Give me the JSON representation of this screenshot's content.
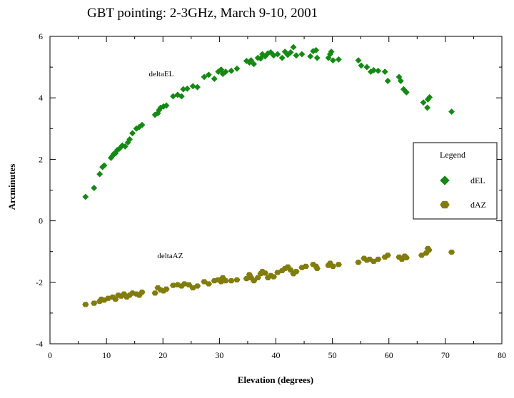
{
  "chart_data": {
    "type": "scatter",
    "title": "GBT pointing:  2-3GHz, March 9-10, 2001",
    "xlabel": "Elevation (degrees)",
    "ylabel": "Arcminutes",
    "xlim": [
      0,
      80
    ],
    "ylim": [
      -4,
      6
    ],
    "x_ticks": [
      "0",
      "10",
      "20",
      "30",
      "40",
      "50",
      "60",
      "70",
      "80"
    ],
    "y_ticks": [
      "-4",
      "-2",
      "0",
      "2",
      "4",
      "6"
    ],
    "grid": false,
    "legend": {
      "title": "Legend",
      "placement": "right",
      "entries": [
        "dEL",
        "dAZ"
      ]
    },
    "annotations": [
      {
        "text": "deltaEL",
        "x": 17.5,
        "y": 4.7
      },
      {
        "text": "deltaAZ",
        "x": 19,
        "y": -1.22
      }
    ],
    "series": [
      {
        "name": "dEL",
        "marker": "diamond",
        "color": "#138a13",
        "points": [
          [
            6.3,
            0.78
          ],
          [
            7.8,
            1.07
          ],
          [
            8.8,
            1.52
          ],
          [
            9.3,
            1.75
          ],
          [
            9.6,
            1.8
          ],
          [
            10.8,
            2.05
          ],
          [
            11.1,
            2.12
          ],
          [
            11.3,
            2.18
          ],
          [
            11.6,
            2.2
          ],
          [
            11.9,
            2.3
          ],
          [
            12.3,
            2.35
          ],
          [
            12.8,
            2.45
          ],
          [
            13.3,
            2.42
          ],
          [
            13.8,
            2.55
          ],
          [
            14.1,
            2.65
          ],
          [
            14.6,
            2.85
          ],
          [
            15.3,
            3.0
          ],
          [
            15.8,
            3.05
          ],
          [
            16.3,
            3.12
          ],
          [
            18.6,
            3.45
          ],
          [
            19.1,
            3.5
          ],
          [
            19.3,
            3.6
          ],
          [
            19.6,
            3.68
          ],
          [
            20.1,
            3.72
          ],
          [
            20.6,
            3.75
          ],
          [
            21.8,
            4.05
          ],
          [
            22.6,
            4.1
          ],
          [
            23.3,
            4.05
          ],
          [
            23.6,
            4.28
          ],
          [
            24.3,
            4.3
          ],
          [
            25.3,
            4.38
          ],
          [
            26.1,
            4.35
          ],
          [
            27.3,
            4.68
          ],
          [
            28.1,
            4.75
          ],
          [
            29.1,
            4.62
          ],
          [
            29.8,
            4.85
          ],
          [
            30.3,
            4.92
          ],
          [
            30.6,
            4.78
          ],
          [
            31.1,
            4.85
          ],
          [
            32.1,
            4.88
          ],
          [
            33.1,
            4.95
          ],
          [
            34.8,
            5.2
          ],
          [
            35.3,
            5.15
          ],
          [
            35.6,
            5.22
          ],
          [
            36.1,
            5.1
          ],
          [
            36.8,
            5.3
          ],
          [
            37.3,
            5.28
          ],
          [
            37.6,
            5.42
          ],
          [
            38.1,
            5.35
          ],
          [
            38.6,
            5.45
          ],
          [
            39.1,
            5.48
          ],
          [
            39.6,
            5.38
          ],
          [
            40.3,
            5.42
          ],
          [
            41.1,
            5.3
          ],
          [
            41.6,
            5.5
          ],
          [
            42.1,
            5.4
          ],
          [
            42.6,
            5.48
          ],
          [
            43.1,
            5.65
          ],
          [
            43.6,
            5.38
          ],
          [
            44.6,
            5.42
          ],
          [
            46.1,
            5.35
          ],
          [
            46.6,
            5.52
          ],
          [
            47.1,
            5.55
          ],
          [
            47.3,
            5.3
          ],
          [
            49.3,
            5.3
          ],
          [
            49.6,
            5.42
          ],
          [
            49.8,
            5.5
          ],
          [
            50.1,
            5.22
          ],
          [
            51.1,
            5.25
          ],
          [
            54.6,
            5.22
          ],
          [
            55.1,
            5.05
          ],
          [
            56.1,
            5.0
          ],
          [
            56.8,
            4.85
          ],
          [
            57.3,
            4.9
          ],
          [
            58.1,
            4.88
          ],
          [
            59.3,
            4.85
          ],
          [
            59.8,
            4.55
          ],
          [
            61.8,
            4.68
          ],
          [
            62.1,
            4.55
          ],
          [
            62.6,
            4.28
          ],
          [
            63.1,
            4.18
          ],
          [
            66.1,
            3.85
          ],
          [
            66.8,
            3.68
          ],
          [
            66.9,
            3.95
          ],
          [
            67.2,
            4.02
          ],
          [
            71.1,
            3.55
          ]
        ]
      },
      {
        "name": "dAZ",
        "marker": "hexagon",
        "color": "#827c0c",
        "points": [
          [
            6.3,
            -2.72
          ],
          [
            7.8,
            -2.68
          ],
          [
            8.8,
            -2.62
          ],
          [
            9.1,
            -2.55
          ],
          [
            9.6,
            -2.58
          ],
          [
            10.3,
            -2.52
          ],
          [
            11.1,
            -2.48
          ],
          [
            11.6,
            -2.55
          ],
          [
            12.1,
            -2.42
          ],
          [
            12.6,
            -2.45
          ],
          [
            13.1,
            -2.38
          ],
          [
            13.6,
            -2.48
          ],
          [
            14.1,
            -2.42
          ],
          [
            14.6,
            -2.35
          ],
          [
            15.3,
            -2.38
          ],
          [
            15.8,
            -2.42
          ],
          [
            16.3,
            -2.32
          ],
          [
            18.6,
            -2.35
          ],
          [
            19.1,
            -2.18
          ],
          [
            19.6,
            -2.25
          ],
          [
            20.1,
            -2.28
          ],
          [
            20.6,
            -2.22
          ],
          [
            21.8,
            -2.1
          ],
          [
            22.6,
            -2.08
          ],
          [
            23.3,
            -2.12
          ],
          [
            23.8,
            -2.05
          ],
          [
            24.6,
            -2.08
          ],
          [
            25.3,
            -2.18
          ],
          [
            26.1,
            -2.12
          ],
          [
            27.3,
            -1.98
          ],
          [
            28.1,
            -2.05
          ],
          [
            29.1,
            -1.95
          ],
          [
            29.8,
            -1.92
          ],
          [
            30.3,
            -1.98
          ],
          [
            30.6,
            -1.85
          ],
          [
            31.1,
            -1.95
          ],
          [
            32.1,
            -1.95
          ],
          [
            33.1,
            -1.92
          ],
          [
            34.8,
            -1.88
          ],
          [
            35.3,
            -1.75
          ],
          [
            35.6,
            -1.85
          ],
          [
            36.1,
            -1.95
          ],
          [
            36.8,
            -1.85
          ],
          [
            37.3,
            -1.72
          ],
          [
            37.6,
            -1.65
          ],
          [
            38.1,
            -1.7
          ],
          [
            38.6,
            -1.85
          ],
          [
            39.1,
            -1.78
          ],
          [
            39.6,
            -1.82
          ],
          [
            40.3,
            -1.68
          ],
          [
            41.1,
            -1.62
          ],
          [
            41.6,
            -1.55
          ],
          [
            42.1,
            -1.5
          ],
          [
            42.6,
            -1.6
          ],
          [
            43.1,
            -1.72
          ],
          [
            43.6,
            -1.65
          ],
          [
            44.6,
            -1.52
          ],
          [
            45.3,
            -1.48
          ],
          [
            46.6,
            -1.42
          ],
          [
            47.1,
            -1.48
          ],
          [
            47.3,
            -1.55
          ],
          [
            49.3,
            -1.45
          ],
          [
            49.6,
            -1.38
          ],
          [
            50.1,
            -1.48
          ],
          [
            51.1,
            -1.42
          ],
          [
            54.6,
            -1.35
          ],
          [
            55.6,
            -1.22
          ],
          [
            56.1,
            -1.28
          ],
          [
            56.6,
            -1.25
          ],
          [
            57.3,
            -1.32
          ],
          [
            58.1,
            -1.25
          ],
          [
            59.3,
            -1.18
          ],
          [
            59.8,
            -1.12
          ],
          [
            61.8,
            -1.18
          ],
          [
            62.3,
            -1.25
          ],
          [
            62.8,
            -1.15
          ],
          [
            63.1,
            -1.2
          ],
          [
            65.8,
            -1.12
          ],
          [
            66.6,
            -1.05
          ],
          [
            66.9,
            -0.9
          ],
          [
            67.1,
            -0.95
          ],
          [
            71.1,
            -1.02
          ]
        ]
      }
    ]
  }
}
